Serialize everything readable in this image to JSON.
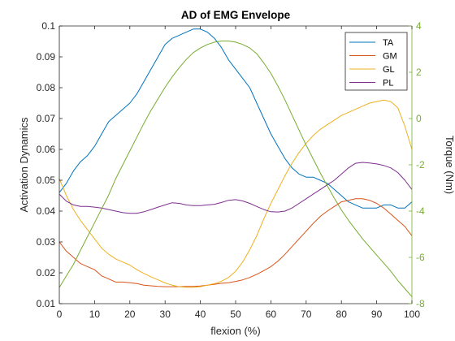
{
  "chart_data": {
    "type": "line",
    "title": "AD of EMG Envelope",
    "xlabel": "flexion (%)",
    "ylabel": "Activation Dynamics",
    "ylabel_right": "Torque (Nm)",
    "xlim": [
      0,
      100
    ],
    "ylim": [
      0.01,
      0.1
    ],
    "ylim_right": [
      -8,
      4
    ],
    "xticks": [
      0,
      10,
      20,
      30,
      40,
      50,
      60,
      70,
      80,
      90,
      100
    ],
    "yticks": [
      0.01,
      0.02,
      0.03,
      0.04,
      0.05,
      0.06,
      0.07,
      0.08,
      0.09,
      0.1
    ],
    "yticks_right": [
      -8,
      -6,
      -4,
      -2,
      0,
      2,
      4
    ],
    "grid": false,
    "legend_position": "top-right",
    "series": [
      {
        "name": "TA",
        "axis": "left",
        "color": "#0072BD",
        "x": [
          0,
          2,
          4,
          6,
          8,
          10,
          12,
          14,
          16,
          18,
          20,
          22,
          24,
          26,
          28,
          30,
          32,
          34,
          36,
          38,
          40,
          42,
          44,
          46,
          48,
          50,
          52,
          54,
          56,
          58,
          60,
          62,
          64,
          66,
          68,
          70,
          72,
          74,
          76,
          78,
          80,
          82,
          84,
          86,
          88,
          90,
          92,
          94,
          96,
          98,
          100
        ],
        "y": [
          0.046,
          0.049,
          0.053,
          0.056,
          0.058,
          0.061,
          0.065,
          0.069,
          0.071,
          0.073,
          0.075,
          0.078,
          0.082,
          0.086,
          0.09,
          0.094,
          0.096,
          0.097,
          0.098,
          0.099,
          0.099,
          0.098,
          0.096,
          0.093,
          0.089,
          0.086,
          0.083,
          0.08,
          0.075,
          0.07,
          0.065,
          0.061,
          0.057,
          0.054,
          0.052,
          0.051,
          0.051,
          0.05,
          0.049,
          0.047,
          0.045,
          0.043,
          0.042,
          0.041,
          0.041,
          0.041,
          0.042,
          0.042,
          0.041,
          0.041,
          0.043
        ]
      },
      {
        "name": "GM",
        "axis": "left",
        "color": "#D95319",
        "x": [
          0,
          2,
          4,
          6,
          8,
          10,
          12,
          14,
          16,
          18,
          20,
          22,
          24,
          26,
          28,
          30,
          32,
          34,
          36,
          38,
          40,
          42,
          44,
          46,
          48,
          50,
          52,
          54,
          56,
          58,
          60,
          62,
          64,
          66,
          68,
          70,
          72,
          74,
          76,
          78,
          80,
          82,
          84,
          86,
          88,
          90,
          92,
          94,
          96,
          98,
          100
        ],
        "y": [
          0.03,
          0.027,
          0.025,
          0.023,
          0.022,
          0.021,
          0.019,
          0.018,
          0.017,
          0.017,
          0.0168,
          0.0165,
          0.016,
          0.0158,
          0.0156,
          0.0155,
          0.0155,
          0.0155,
          0.0156,
          0.0156,
          0.0157,
          0.016,
          0.0163,
          0.0166,
          0.0168,
          0.0172,
          0.0177,
          0.0185,
          0.0195,
          0.0207,
          0.022,
          0.0238,
          0.026,
          0.0285,
          0.031,
          0.0335,
          0.036,
          0.0383,
          0.04,
          0.0415,
          0.043,
          0.0435,
          0.044,
          0.044,
          0.0435,
          0.0425,
          0.041,
          0.039,
          0.037,
          0.035,
          0.032
        ]
      },
      {
        "name": "GL",
        "axis": "left",
        "color": "#EDB120",
        "x": [
          0,
          2,
          4,
          6,
          8,
          10,
          12,
          14,
          16,
          18,
          20,
          22,
          24,
          26,
          28,
          30,
          32,
          34,
          36,
          38,
          40,
          42,
          44,
          46,
          48,
          50,
          52,
          54,
          56,
          58,
          60,
          62,
          64,
          66,
          68,
          70,
          72,
          74,
          76,
          78,
          80,
          82,
          84,
          86,
          88,
          90,
          92,
          94,
          96,
          98,
          100
        ],
        "y": [
          0.0505,
          0.045,
          0.0405,
          0.037,
          0.034,
          0.031,
          0.028,
          0.026,
          0.0245,
          0.0235,
          0.0225,
          0.021,
          0.0198,
          0.0187,
          0.0177,
          0.0167,
          0.016,
          0.0155,
          0.0153,
          0.0153,
          0.0155,
          0.016,
          0.0165,
          0.0173,
          0.0185,
          0.0205,
          0.0235,
          0.0275,
          0.032,
          0.0375,
          0.0425,
          0.047,
          0.0515,
          0.0555,
          0.059,
          0.062,
          0.0645,
          0.0665,
          0.068,
          0.0695,
          0.071,
          0.072,
          0.073,
          0.074,
          0.075,
          0.0755,
          0.076,
          0.0755,
          0.0735,
          0.0675,
          0.06
        ]
      },
      {
        "name": "PL",
        "axis": "left",
        "color": "#7E2F8E",
        "x": [
          0,
          2,
          4,
          6,
          8,
          10,
          12,
          14,
          16,
          18,
          20,
          22,
          24,
          26,
          28,
          30,
          32,
          34,
          36,
          38,
          40,
          42,
          44,
          46,
          48,
          50,
          52,
          54,
          56,
          58,
          60,
          62,
          64,
          66,
          68,
          70,
          72,
          74,
          76,
          78,
          80,
          82,
          84,
          86,
          88,
          90,
          92,
          94,
          96,
          98,
          100
        ],
        "y": [
          0.0455,
          0.0432,
          0.042,
          0.0415,
          0.0415,
          0.0413,
          0.041,
          0.0405,
          0.04,
          0.0395,
          0.0393,
          0.0393,
          0.0398,
          0.0405,
          0.0413,
          0.042,
          0.0427,
          0.0425,
          0.042,
          0.0418,
          0.0418,
          0.042,
          0.0422,
          0.0428,
          0.0435,
          0.0437,
          0.0433,
          0.0425,
          0.0415,
          0.0405,
          0.0398,
          0.0397,
          0.04,
          0.041,
          0.0425,
          0.044,
          0.0455,
          0.047,
          0.0485,
          0.05,
          0.052,
          0.054,
          0.0555,
          0.0558,
          0.0556,
          0.0553,
          0.0548,
          0.054,
          0.0525,
          0.05,
          0.047
        ]
      },
      {
        "name": "",
        "axis": "right",
        "color": "#77AC30",
        "x": [
          0,
          2,
          4,
          6,
          8,
          10,
          12,
          14,
          16,
          18,
          20,
          22,
          24,
          26,
          28,
          30,
          32,
          34,
          36,
          38,
          40,
          42,
          44,
          46,
          48,
          50,
          52,
          54,
          56,
          58,
          60,
          62,
          64,
          66,
          68,
          70,
          72,
          74,
          76,
          78,
          80,
          82,
          84,
          86,
          88,
          90,
          92,
          94,
          96,
          98,
          100
        ],
        "y": [
          -7.3,
          -6.8,
          -6.3,
          -5.7,
          -5.1,
          -4.5,
          -3.9,
          -3.3,
          -2.6,
          -2.0,
          -1.4,
          -0.8,
          -0.2,
          0.35,
          0.85,
          1.35,
          1.8,
          2.2,
          2.55,
          2.85,
          3.05,
          3.2,
          3.3,
          3.35,
          3.35,
          3.3,
          3.2,
          3.05,
          2.8,
          2.4,
          1.95,
          1.4,
          0.8,
          0.15,
          -0.5,
          -1.15,
          -1.75,
          -2.35,
          -2.9,
          -3.45,
          -3.95,
          -4.4,
          -4.8,
          -5.2,
          -5.55,
          -5.9,
          -6.25,
          -6.6,
          -7.0,
          -7.35,
          -7.7
        ]
      }
    ]
  }
}
